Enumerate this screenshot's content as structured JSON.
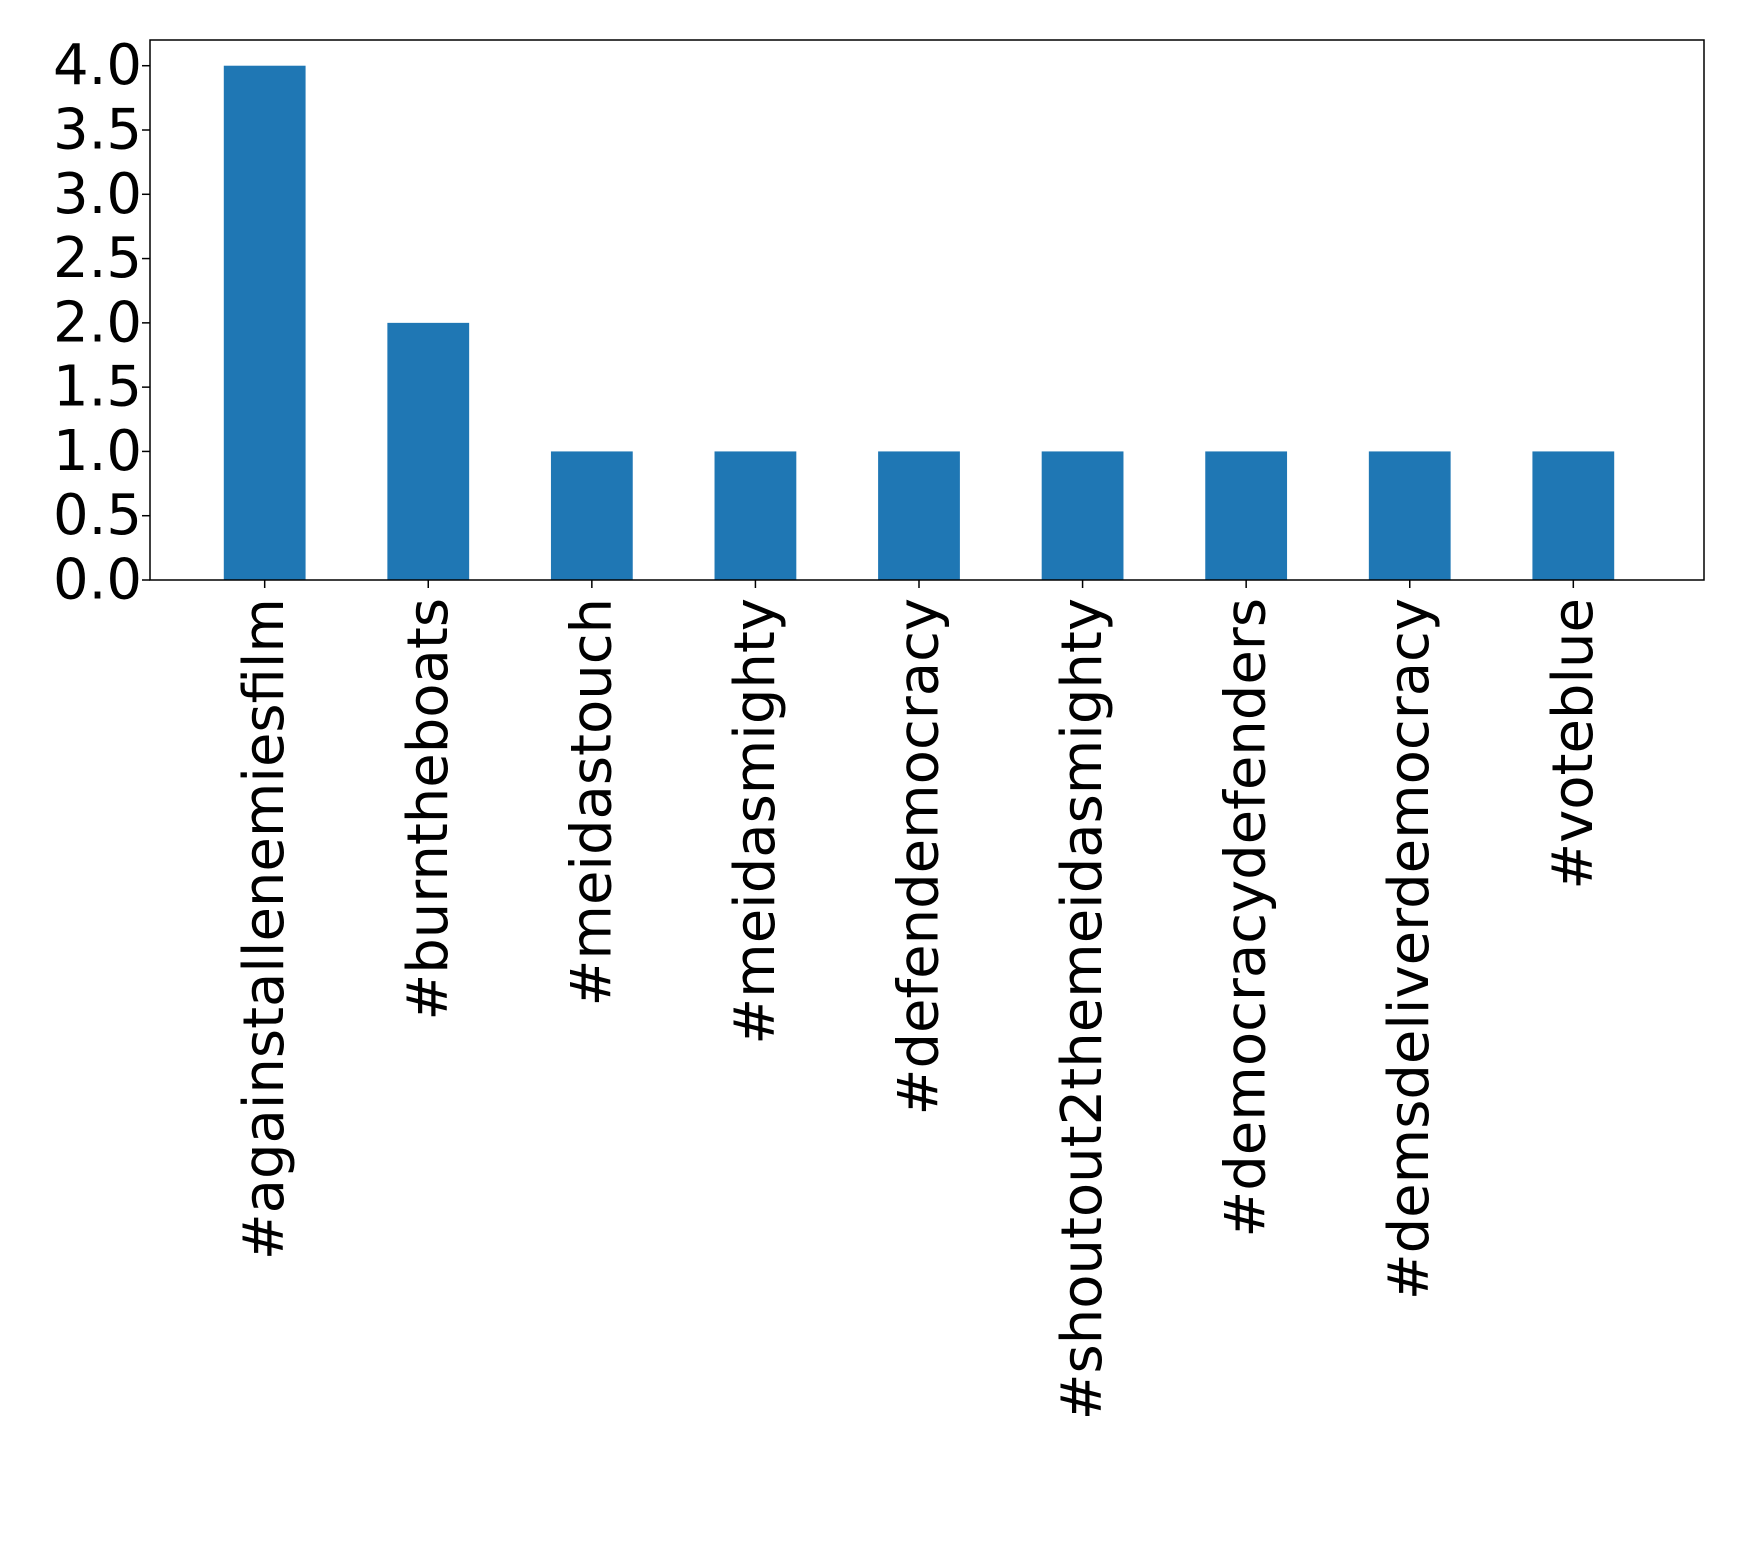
{
  "chart_data": {
    "type": "bar",
    "categories": [
      "#againstallenemiesfilm",
      "#burntheboats",
      "#meidastouch",
      "#meidasmighty",
      "#defendemocracy",
      "#shoutout2themeidasmighty",
      "#democracydefenders",
      "#demsdeliverdemocracy",
      "#voteblue"
    ],
    "values": [
      4,
      2,
      1,
      1,
      1,
      1,
      1,
      1,
      1
    ],
    "title": "",
    "xlabel": "",
    "ylabel": "",
    "ylim": [
      0,
      4.2
    ],
    "yticks": [
      "0.0",
      "0.5",
      "1.0",
      "1.5",
      "2.0",
      "2.5",
      "3.0",
      "3.5",
      "4.0"
    ],
    "grid": false,
    "legend": "none",
    "bar_color": "#1f77b4"
  }
}
